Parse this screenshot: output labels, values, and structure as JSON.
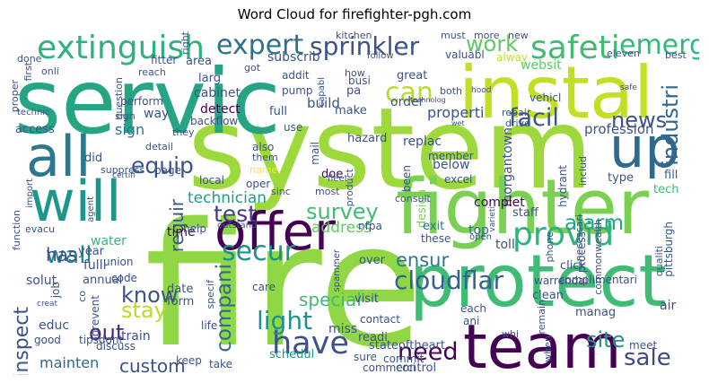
{
  "title": "Word Cloud for firefighter-pgh.com",
  "chart_data": {
    "type": "wordcloud",
    "title": "Word Cloud for firefighter-pgh.com",
    "colormap": "viridis",
    "background": "#ffffff",
    "words": [
      {
        "text": "fire",
        "color": "#8fd744"
      },
      {
        "text": "system",
        "color": "#9dd93b"
      },
      {
        "text": "servic",
        "color": "#26a584"
      },
      {
        "text": "instal",
        "color": "#c2df23"
      },
      {
        "text": "protect",
        "color": "#3ebc74"
      },
      {
        "text": "fighter",
        "color": "#7ad151"
      },
      {
        "text": "team",
        "color": "#440154"
      },
      {
        "text": "offer",
        "color": "#440154"
      },
      {
        "text": "up",
        "color": "#31688e"
      },
      {
        "text": "will",
        "color": "#1f968b"
      },
      {
        "text": "all",
        "color": "#2a788e"
      },
      {
        "text": "extinguish",
        "color": "#2db27d"
      },
      {
        "text": "provid",
        "color": "#2db27d"
      },
      {
        "text": "safeti",
        "color": "#3fbc73"
      },
      {
        "text": "sprinkler",
        "color": "#3b528b"
      },
      {
        "text": "expert",
        "color": "#2c728e"
      },
      {
        "text": "emerg",
        "color": "#35b779"
      },
      {
        "text": "can",
        "color": "#b5de2b"
      },
      {
        "text": "facil",
        "color": "#3b528b"
      },
      {
        "text": "have",
        "color": "#3b528b"
      },
      {
        "text": "test",
        "color": "#443983"
      },
      {
        "text": "secur",
        "color": "#21918c"
      },
      {
        "text": "survey",
        "color": "#3fbc73"
      },
      {
        "text": "work",
        "color": "#5ec962"
      },
      {
        "text": "news",
        "color": "#3b528b"
      },
      {
        "text": "industri",
        "color": "#31688e"
      },
      {
        "text": "equip",
        "color": "#3b528b"
      },
      {
        "text": "cloudflar",
        "color": "#33638d"
      },
      {
        "text": "alarm",
        "color": "#21a685"
      },
      {
        "text": "site",
        "color": "#21918c"
      },
      {
        "text": "sale",
        "color": "#3e4989"
      },
      {
        "text": "need",
        "color": "#440154"
      },
      {
        "text": "compani",
        "color": "#31688e"
      },
      {
        "text": "inspect",
        "color": "#3b528b"
      },
      {
        "text": "know",
        "color": "#3b528b"
      },
      {
        "text": "stay",
        "color": "#b5de2b"
      },
      {
        "text": "out",
        "color": "#482878"
      },
      {
        "text": "light",
        "color": "#21918c"
      },
      {
        "text": "custom",
        "color": "#3b528b"
      },
      {
        "text": "ensur",
        "color": "#2a788e"
      },
      {
        "text": "requir",
        "color": "#3b528b"
      },
      {
        "text": "special",
        "color": "#3fbc73"
      },
      {
        "text": "mainten",
        "color": "#31688e"
      },
      {
        "text": "wall",
        "color": "#26828e"
      },
      {
        "text": "technician",
        "color": "#1f9e89"
      },
      {
        "text": "has",
        "color": "#3b528b"
      },
      {
        "text": "address",
        "color": "#5ec962"
      },
      {
        "text": "properti",
        "color": "#3b528b"
      },
      {
        "text": "sign",
        "color": "#2c728e"
      },
      {
        "text": "time",
        "color": "#440154"
      },
      {
        "text": "water",
        "color": "#35b779"
      },
      {
        "text": "replac",
        "color": "#3b528b"
      },
      {
        "text": "profession",
        "color": "#3b528b"
      },
      {
        "text": "morgantown",
        "color": "#3b528b"
      },
      {
        "text": "miss",
        "color": "#3b528b"
      },
      {
        "text": "schedul",
        "color": "#1f968b"
      },
      {
        "text": "design",
        "color": "#7ad151"
      },
      {
        "text": "fill",
        "color": "#33638d"
      },
      {
        "text": "tech",
        "color": "#3fbc73"
      },
      {
        "text": "type",
        "color": "#3b528b"
      },
      {
        "text": "exit",
        "color": "#2a788e"
      },
      {
        "text": "top",
        "color": "#31688e"
      },
      {
        "text": "staff",
        "color": "#3b528b"
      },
      {
        "text": "complet",
        "color": "#440154"
      },
      {
        "text": "toll",
        "color": "#3b528b"
      },
      {
        "text": "hazard",
        "color": "#3b528b"
      },
      {
        "text": "below",
        "color": "#3b528b"
      },
      {
        "text": "excel",
        "color": "#3b528b"
      },
      {
        "text": "member",
        "color": "#3b528b"
      },
      {
        "text": "doe",
        "color": "#440154"
      },
      {
        "text": "most",
        "color": "#3b528b"
      },
      {
        "text": "consult",
        "color": "#3b528b"
      },
      {
        "text": "fleet",
        "color": "#3b528b"
      },
      {
        "text": "oper",
        "color": "#3b528b"
      },
      {
        "text": "sinc",
        "color": "#3b528b"
      },
      {
        "text": "mail",
        "color": "#3b528b"
      },
      {
        "text": "name",
        "color": "#fde725"
      },
      {
        "text": "local",
        "color": "#3b528b"
      },
      {
        "text": "page",
        "color": "#3b528b"
      },
      {
        "text": "detail",
        "color": "#3b528b"
      },
      {
        "text": "also",
        "color": "#3b528b"
      },
      {
        "text": "them",
        "color": "#3b528b"
      },
      {
        "text": "they",
        "color": "#3b528b"
      },
      {
        "text": "backflow",
        "color": "#3b528b"
      },
      {
        "text": "detect",
        "color": "#440154"
      },
      {
        "text": "full",
        "color": "#3b528b"
      },
      {
        "text": "build",
        "color": "#3b528b"
      },
      {
        "text": "use",
        "color": "#3b528b"
      },
      {
        "text": "make",
        "color": "#3b528b"
      },
      {
        "text": "order",
        "color": "#3b528b"
      },
      {
        "text": "repair",
        "color": "#3b528b"
      },
      {
        "text": "drive",
        "color": "#3b528b"
      },
      {
        "text": "great",
        "color": "#3b528b"
      },
      {
        "text": "both",
        "color": "#3b528b"
      },
      {
        "text": "websit",
        "color": "#5ec962"
      },
      {
        "text": "vehicl",
        "color": "#3b528b"
      },
      {
        "text": "busi",
        "color": "#3b528b"
      },
      {
        "text": "valuabl",
        "color": "#3b528b"
      },
      {
        "text": "alway",
        "color": "#c2df23"
      },
      {
        "text": "subscrib",
        "color": "#3b528b"
      },
      {
        "text": "pump",
        "color": "#3b528b"
      },
      {
        "text": "addit",
        "color": "#3b528b"
      },
      {
        "text": "pa",
        "color": "#3b528b"
      },
      {
        "text": "got",
        "color": "#3b528b"
      },
      {
        "text": "larg",
        "color": "#3b528b"
      },
      {
        "text": "area",
        "color": "#3b528b"
      },
      {
        "text": "cabinet",
        "color": "#3b528b"
      },
      {
        "text": "perform",
        "color": "#3b528b"
      },
      {
        "text": "way",
        "color": "#3b528b"
      },
      {
        "text": "question",
        "color": "#3b528b"
      },
      {
        "text": "reach",
        "color": "#3b528b"
      },
      {
        "text": "fitter",
        "color": "#3b528b"
      },
      {
        "text": "onli",
        "color": "#3b528b"
      },
      {
        "text": "done",
        "color": "#3b528b"
      },
      {
        "text": "proper",
        "color": "#3b528b"
      },
      {
        "text": "first",
        "color": "#3b528b"
      },
      {
        "text": "kitchen",
        "color": "#3b528b"
      },
      {
        "text": "must",
        "color": "#3b528b"
      },
      {
        "text": "more",
        "color": "#3b528b"
      },
      {
        "text": "new",
        "color": "#3b528b"
      },
      {
        "text": "follow",
        "color": "#3b528b"
      },
      {
        "text": "how",
        "color": "#3b528b"
      },
      {
        "text": "capabl",
        "color": "#3b528b"
      },
      {
        "text": "eleven",
        "color": "#3b528b"
      },
      {
        "text": "best",
        "color": "#3b528b"
      },
      {
        "text": "hood",
        "color": "#3b528b"
      },
      {
        "text": "safe",
        "color": "#3b528b"
      },
      {
        "text": "technolog",
        "color": "#3b528b"
      },
      {
        "text": "wet",
        "color": "#3b528b"
      },
      {
        "text": "access",
        "color": "#3b528b"
      },
      {
        "text": "technic",
        "color": "#3b528b"
      },
      {
        "text": "did",
        "color": "#3b528b"
      },
      {
        "text": "certifi",
        "color": "#3b528b"
      },
      {
        "text": "import",
        "color": "#3b528b"
      },
      {
        "text": "suppress",
        "color": "#3b528b"
      },
      {
        "text": "agent",
        "color": "#3b528b"
      },
      {
        "text": "function",
        "color": "#3b528b"
      },
      {
        "text": "evacu",
        "color": "#3b528b"
      },
      {
        "text": "year",
        "color": "#3b528b"
      },
      {
        "text": "fulli",
        "color": "#3b528b"
      },
      {
        "text": "annual",
        "color": "#3b528b"
      },
      {
        "text": "union",
        "color": "#3b528b"
      },
      {
        "text": "code",
        "color": "#3b528b"
      },
      {
        "text": "help",
        "color": "#3b528b"
      },
      {
        "text": "outstand",
        "color": "#3b528b"
      },
      {
        "text": "date",
        "color": "#3b528b"
      },
      {
        "text": "form",
        "color": "#3b528b"
      },
      {
        "text": "specif",
        "color": "#3b528b"
      },
      {
        "text": "care",
        "color": "#3b528b"
      },
      {
        "text": "solut",
        "color": "#3b528b"
      },
      {
        "text": "job",
        "color": "#3b528b"
      },
      {
        "text": "co",
        "color": "#3b528b"
      },
      {
        "text": "prevent",
        "color": "#3b528b"
      },
      {
        "text": "educ",
        "color": "#3b528b"
      },
      {
        "text": "creat",
        "color": "#3b528b"
      },
      {
        "text": "discuss",
        "color": "#3b528b"
      },
      {
        "text": "life",
        "color": "#3b528b"
      },
      {
        "text": "good",
        "color": "#3b528b"
      },
      {
        "text": "tipsdont",
        "color": "#3b528b"
      },
      {
        "text": "train",
        "color": "#3b528b"
      },
      {
        "text": "keep",
        "color": "#3b528b"
      },
      {
        "text": "take",
        "color": "#3b528b"
      },
      {
        "text": "sure",
        "color": "#3b528b"
      },
      {
        "text": "commerci",
        "color": "#3b528b"
      },
      {
        "text": "control",
        "color": "#3b528b"
      },
      {
        "text": "visit",
        "color": "#3b528b"
      },
      {
        "text": "contact",
        "color": "#3b528b"
      },
      {
        "text": "readi",
        "color": "#3b528b"
      },
      {
        "text": "stateoftheart",
        "color": "#3b528b"
      },
      {
        "text": "commit",
        "color": "#3b528b"
      },
      {
        "text": "when",
        "color": "#3b528b"
      },
      {
        "text": "each",
        "color": "#3b528b"
      },
      {
        "text": "ani",
        "color": "#3b528b"
      },
      {
        "text": "whi",
        "color": "#3b528b"
      },
      {
        "text": "remain",
        "color": "#3b528b"
      },
      {
        "text": "manag",
        "color": "#3b528b"
      },
      {
        "text": "meet",
        "color": "#3b528b"
      },
      {
        "text": "air",
        "color": "#3b528b"
      },
      {
        "text": "qualiti",
        "color": "#3b528b"
      },
      {
        "text": "complimentari",
        "color": "#3b528b"
      },
      {
        "text": "pittsburgh",
        "color": "#3b528b"
      },
      {
        "text": "clean",
        "color": "#3b528b"
      },
      {
        "text": "warrendal",
        "color": "#3b528b"
      },
      {
        "text": "click",
        "color": "#3b528b"
      },
      {
        "text": "process",
        "color": "#3b528b"
      },
      {
        "text": "commonwealth",
        "color": "#3b528b"
      },
      {
        "text": "necessari",
        "color": "#3b528b"
      },
      {
        "text": "phone",
        "color": "#3b528b"
      },
      {
        "text": "hydrant",
        "color": "#3b528b"
      },
      {
        "text": "includ",
        "color": "#3b528b"
      },
      {
        "text": "varieti",
        "color": "#3b528b"
      },
      {
        "text": "open",
        "color": "#3b528b"
      },
      {
        "text": "nfpa",
        "color": "#3b528b"
      },
      {
        "text": "over",
        "color": "#3b528b"
      },
      {
        "text": "spammer",
        "color": "#3b528b"
      },
      {
        "text": "these",
        "color": "#3b528b"
      },
      {
        "text": "product",
        "color": "#3b528b"
      },
      {
        "text": "been",
        "color": "#3b528b"
      },
      {
        "text": "right",
        "color": "#3b528b"
      },
      {
        "text": "sign",
        "color": "#3b528b"
      }
    ]
  }
}
